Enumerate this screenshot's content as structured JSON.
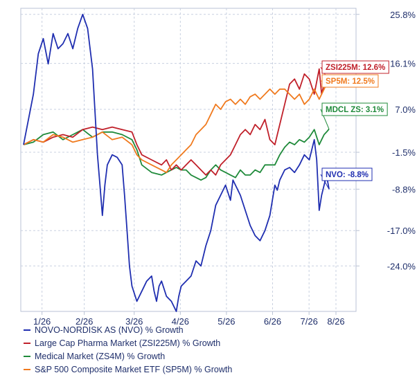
{
  "chart_data": {
    "type": "line",
    "x_ticks": [
      "1/26",
      "2/26",
      "3/26",
      "4/26",
      "5/26",
      "6/26",
      "7/26",
      "8/26"
    ],
    "y_ticks": [
      "25.8%",
      "16.1%",
      "7.0%",
      "-1.5%",
      "-8.8%",
      "-17.0%",
      "-24.0%"
    ],
    "ylim": [
      -33,
      27
    ],
    "grid": true,
    "legend_position": "bottom",
    "series": [
      {
        "name": "NOVO-NORDISK AS (NVO) % Growth",
        "color": "#1f2eb0",
        "end_label": "NVO: -8.8%",
        "label_color": "#1f2eb0",
        "values": [
          [
            0,
            0
          ],
          [
            2,
            5
          ],
          [
            4,
            10
          ],
          [
            6,
            18
          ],
          [
            8,
            21
          ],
          [
            10,
            16
          ],
          [
            12,
            22
          ],
          [
            14,
            19
          ],
          [
            16,
            20
          ],
          [
            18,
            22
          ],
          [
            20,
            19
          ],
          [
            22,
            23
          ],
          [
            24,
            25.8
          ],
          [
            26,
            23
          ],
          [
            28,
            15
          ],
          [
            30,
            -2
          ],
          [
            31,
            -8
          ],
          [
            32,
            -14
          ],
          [
            33,
            -8
          ],
          [
            34,
            -4
          ],
          [
            36,
            -2
          ],
          [
            38,
            -2.5
          ],
          [
            40,
            -4
          ],
          [
            41,
            -10
          ],
          [
            42,
            -17
          ],
          [
            43,
            -24
          ],
          [
            44,
            -28
          ],
          [
            46,
            -31
          ],
          [
            48,
            -29
          ],
          [
            50,
            -27
          ],
          [
            52,
            -26
          ],
          [
            53,
            -29
          ],
          [
            54,
            -31
          ],
          [
            55,
            -28
          ],
          [
            56,
            -27
          ],
          [
            58,
            -30
          ],
          [
            60,
            -31
          ],
          [
            62,
            -33
          ],
          [
            63,
            -30
          ],
          [
            64,
            -28
          ],
          [
            66,
            -27
          ],
          [
            68,
            -26
          ],
          [
            70,
            -23
          ],
          [
            72,
            -24
          ],
          [
            74,
            -20
          ],
          [
            76,
            -17
          ],
          [
            78,
            -12
          ],
          [
            80,
            -10
          ],
          [
            82,
            -8
          ],
          [
            84,
            -11
          ],
          [
            85,
            -7
          ],
          [
            86,
            -8
          ],
          [
            88,
            -10
          ],
          [
            90,
            -13
          ],
          [
            92,
            -16
          ],
          [
            94,
            -18
          ],
          [
            96,
            -19
          ],
          [
            98,
            -17
          ],
          [
            100,
            -14
          ],
          [
            102,
            -8
          ],
          [
            103,
            -9
          ],
          [
            104,
            -7
          ],
          [
            106,
            -5
          ],
          [
            108,
            -4.5
          ],
          [
            110,
            -5.5
          ],
          [
            112,
            -4
          ],
          [
            114,
            -2
          ],
          [
            116,
            -3
          ],
          [
            118,
            1
          ],
          [
            119,
            -3
          ],
          [
            120,
            -13
          ],
          [
            121,
            -10
          ],
          [
            122,
            -8
          ],
          [
            123,
            -6
          ],
          [
            124,
            -8.8
          ]
        ]
      },
      {
        "name": "Large Cap Pharma Market (ZSI225M) % Growth",
        "color": "#c0202a",
        "end_label": "ZSI225M: 12.6%",
        "label_color": "#c0202a",
        "values": [
          [
            0,
            0
          ],
          [
            4,
            1
          ],
          [
            8,
            0.5
          ],
          [
            12,
            1.5
          ],
          [
            16,
            2
          ],
          [
            20,
            1.5
          ],
          [
            24,
            3
          ],
          [
            28,
            3.5
          ],
          [
            32,
            3
          ],
          [
            36,
            3.5
          ],
          [
            40,
            3
          ],
          [
            44,
            2.5
          ],
          [
            46,
            0
          ],
          [
            48,
            -2
          ],
          [
            52,
            -3
          ],
          [
            56,
            -4
          ],
          [
            58,
            -3
          ],
          [
            60,
            -5
          ],
          [
            62,
            -4
          ],
          [
            64,
            -5
          ],
          [
            66,
            -4
          ],
          [
            68,
            -3
          ],
          [
            70,
            -4
          ],
          [
            72,
            -5
          ],
          [
            74,
            -6
          ],
          [
            76,
            -5
          ],
          [
            78,
            -6
          ],
          [
            80,
            -4
          ],
          [
            82,
            -3
          ],
          [
            84,
            -2
          ],
          [
            86,
            0
          ],
          [
            88,
            2
          ],
          [
            90,
            3
          ],
          [
            92,
            2
          ],
          [
            94,
            4
          ],
          [
            96,
            3
          ],
          [
            98,
            5
          ],
          [
            100,
            1
          ],
          [
            102,
            0
          ],
          [
            104,
            4
          ],
          [
            106,
            8
          ],
          [
            108,
            12
          ],
          [
            110,
            13
          ],
          [
            112,
            11
          ],
          [
            114,
            14
          ],
          [
            116,
            13
          ],
          [
            118,
            10
          ],
          [
            120,
            15
          ],
          [
            121,
            10
          ],
          [
            122,
            12
          ],
          [
            123,
            13
          ],
          [
            124,
            12.6
          ]
        ]
      },
      {
        "name": "Medical Market (ZS4M) % Growth",
        "color": "#1f8a3a",
        "end_label": "MDCL ZS: 3.1%",
        "label_color": "#1f8a3a",
        "values": [
          [
            0,
            0
          ],
          [
            4,
            0.5
          ],
          [
            8,
            2
          ],
          [
            12,
            2.5
          ],
          [
            16,
            1
          ],
          [
            20,
            2
          ],
          [
            24,
            3
          ],
          [
            28,
            1.5
          ],
          [
            32,
            2.5
          ],
          [
            36,
            2.5
          ],
          [
            40,
            2
          ],
          [
            44,
            1
          ],
          [
            46,
            -1
          ],
          [
            48,
            -4
          ],
          [
            52,
            -5.5
          ],
          [
            56,
            -6
          ],
          [
            58,
            -5.5
          ],
          [
            60,
            -5
          ],
          [
            62,
            -4.5
          ],
          [
            64,
            -5
          ],
          [
            66,
            -5
          ],
          [
            68,
            -6
          ],
          [
            70,
            -6.5
          ],
          [
            72,
            -7
          ],
          [
            74,
            -6.5
          ],
          [
            76,
            -5
          ],
          [
            78,
            -4
          ],
          [
            80,
            -5
          ],
          [
            82,
            -5.5
          ],
          [
            84,
            -6
          ],
          [
            86,
            -6.5
          ],
          [
            88,
            -5
          ],
          [
            90,
            -6
          ],
          [
            92,
            -6
          ],
          [
            94,
            -5
          ],
          [
            96,
            -5.5
          ],
          [
            98,
            -4
          ],
          [
            100,
            -4
          ],
          [
            102,
            -4
          ],
          [
            104,
            -2
          ],
          [
            106,
            -0.5
          ],
          [
            108,
            0.5
          ],
          [
            110,
            0
          ],
          [
            112,
            1
          ],
          [
            114,
            0.5
          ],
          [
            116,
            1.5
          ],
          [
            118,
            3
          ],
          [
            120,
            0
          ],
          [
            121,
            1
          ],
          [
            122,
            2
          ],
          [
            123,
            2.5
          ],
          [
            124,
            3.1
          ]
        ]
      },
      {
        "name": "S&P 500 Composite Market ETF (SP5M) % Growth",
        "color": "#f07a1e",
        "end_label": "SP5M: 12.5%",
        "label_color": "#f07a1e",
        "values": [
          [
            0,
            0
          ],
          [
            4,
            1
          ],
          [
            8,
            0.5
          ],
          [
            12,
            2
          ],
          [
            16,
            1.5
          ],
          [
            20,
            0.5
          ],
          [
            24,
            1
          ],
          [
            28,
            1.5
          ],
          [
            32,
            2.5
          ],
          [
            36,
            1
          ],
          [
            40,
            1.5
          ],
          [
            44,
            0
          ],
          [
            46,
            -2
          ],
          [
            48,
            -3
          ],
          [
            52,
            -4
          ],
          [
            56,
            -5
          ],
          [
            58,
            -5.5
          ],
          [
            60,
            -4
          ],
          [
            62,
            -3
          ],
          [
            64,
            -2
          ],
          [
            66,
            -1
          ],
          [
            68,
            0
          ],
          [
            70,
            2
          ],
          [
            72,
            3
          ],
          [
            74,
            4
          ],
          [
            76,
            6
          ],
          [
            78,
            8
          ],
          [
            80,
            7
          ],
          [
            82,
            8.5
          ],
          [
            84,
            9
          ],
          [
            86,
            8
          ],
          [
            88,
            9
          ],
          [
            90,
            8
          ],
          [
            92,
            9.5
          ],
          [
            94,
            10
          ],
          [
            96,
            9
          ],
          [
            98,
            10
          ],
          [
            100,
            11
          ],
          [
            102,
            10
          ],
          [
            104,
            11
          ],
          [
            106,
            11
          ],
          [
            108,
            10
          ],
          [
            110,
            9
          ],
          [
            112,
            10
          ],
          [
            114,
            8
          ],
          [
            116,
            9
          ],
          [
            118,
            11
          ],
          [
            120,
            9
          ],
          [
            121,
            10
          ],
          [
            122,
            11
          ],
          [
            123,
            12
          ],
          [
            124,
            12.5
          ]
        ]
      }
    ]
  }
}
